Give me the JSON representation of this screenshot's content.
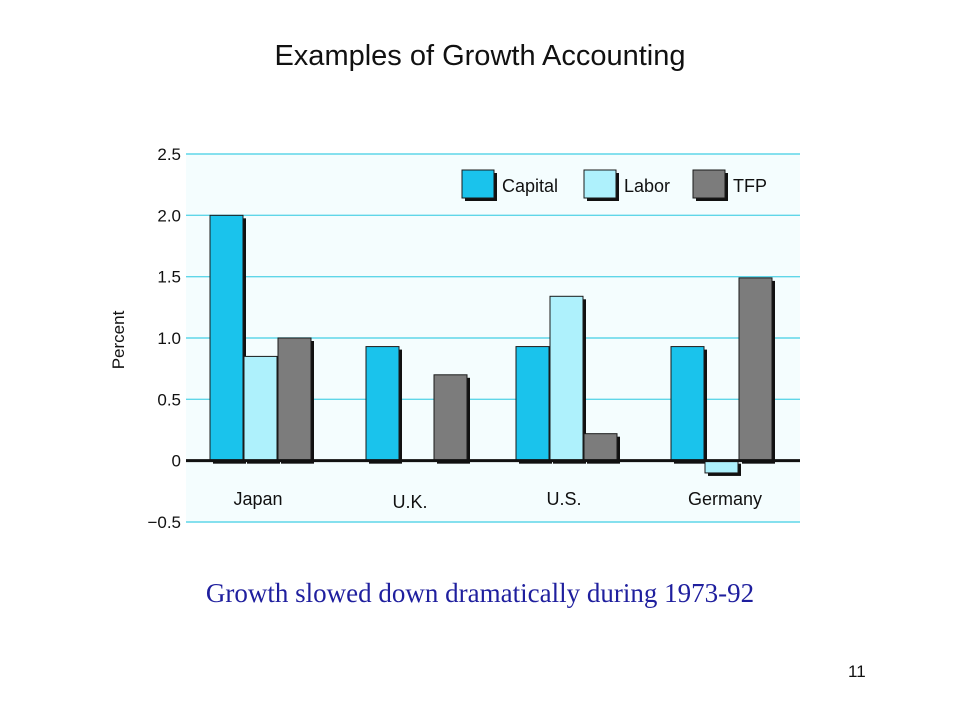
{
  "slide": {
    "title": "Examples of Growth Accounting",
    "caption": "Growth slowed down dramatically during 1973-92",
    "page_number": "11"
  },
  "colors": {
    "plot_background": "#f4fdfe",
    "gridline": "#5fd6e8",
    "capital": "#1ac3ec",
    "labor": "#aef1fc",
    "tfp": "#7c7c7c",
    "caption_text": "#1f1f9e"
  },
  "chart_data": {
    "type": "bar",
    "title": "",
    "xlabel": "",
    "ylabel": "Percent",
    "ylim": [
      -0.5,
      2.5
    ],
    "yticks": [
      -0.5,
      0,
      0.5,
      1.0,
      1.5,
      2.0,
      2.5
    ],
    "ytick_labels": [
      "−0.5",
      "0",
      "0.5",
      "1.0",
      "1.5",
      "2.0",
      "2.5"
    ],
    "grid": true,
    "legend_position": "top-right",
    "categories": [
      "Japan",
      "U.K.",
      "U.S.",
      "Germany"
    ],
    "series": [
      {
        "name": "Capital",
        "color_key": "capital",
        "values": [
          2.0,
          0.93,
          0.93,
          0.93
        ]
      },
      {
        "name": "Labor",
        "color_key": "labor",
        "values": [
          0.85,
          null,
          1.34,
          -0.1
        ]
      },
      {
        "name": "TFP",
        "color_key": "tfp",
        "values": [
          1.0,
          0.7,
          0.22,
          1.49
        ]
      }
    ]
  }
}
